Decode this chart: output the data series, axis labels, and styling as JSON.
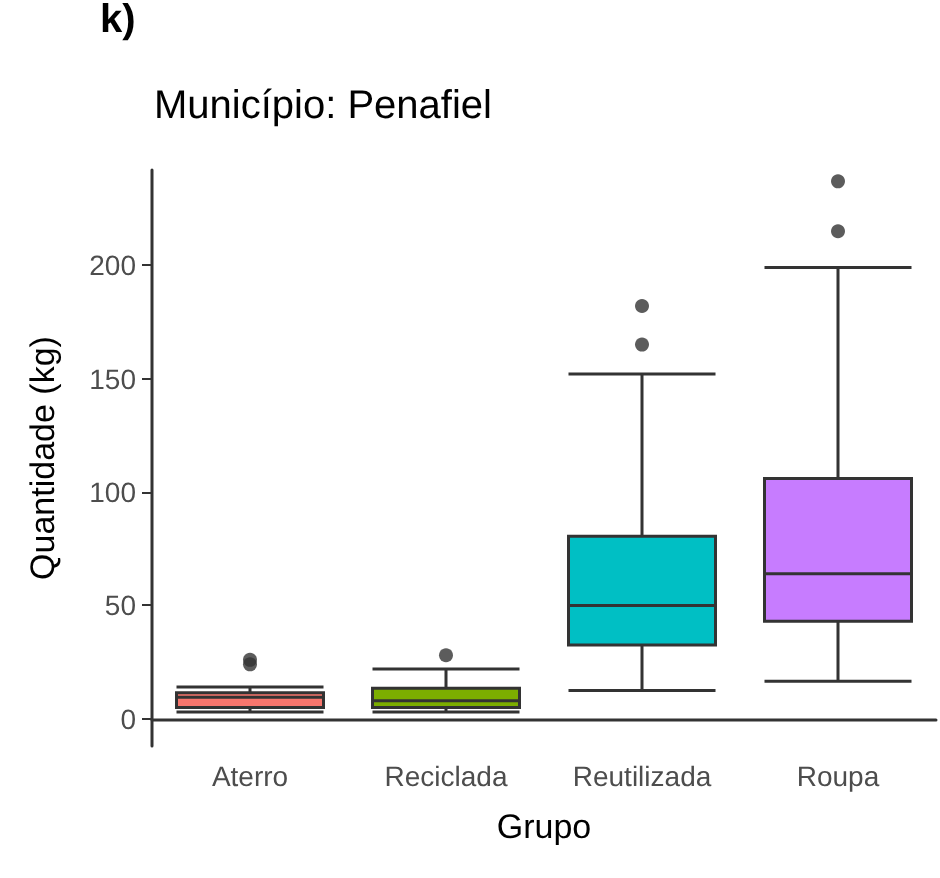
{
  "chart_data": {
    "type": "box",
    "title": "Município: Penafiel",
    "annotations": [
      "k)"
    ],
    "xlabel": "Grupo",
    "ylabel": "Quantidade (kg)",
    "categories": [
      "Aterro",
      "Reciclada",
      "Reutilizada",
      "Roupa"
    ],
    "colors": [
      "#f8766d",
      "#7cae00",
      "#00bfc4",
      "#c77cff"
    ],
    "boxes": [
      {
        "low": 3,
        "q1": 5,
        "median": 9.5,
        "q3": 11.5,
        "high": 14,
        "outliers": [
          24,
          26
        ]
      },
      {
        "low": 3,
        "q1": 5,
        "median": 8,
        "q3": 13.5,
        "high": 22,
        "outliers": [
          28
        ]
      },
      {
        "low": 12.5,
        "q1": 32.5,
        "median": 50,
        "q3": 80.5,
        "high": 152,
        "outliers": [
          165,
          182
        ]
      },
      {
        "low": 16.5,
        "q1": 43,
        "median": 64,
        "q3": 106,
        "high": 199,
        "outliers": [
          215,
          237
        ]
      }
    ],
    "ylim": [
      -12,
      242
    ],
    "yticks": [
      0,
      50,
      100,
      150,
      200
    ],
    "grid": false
  }
}
